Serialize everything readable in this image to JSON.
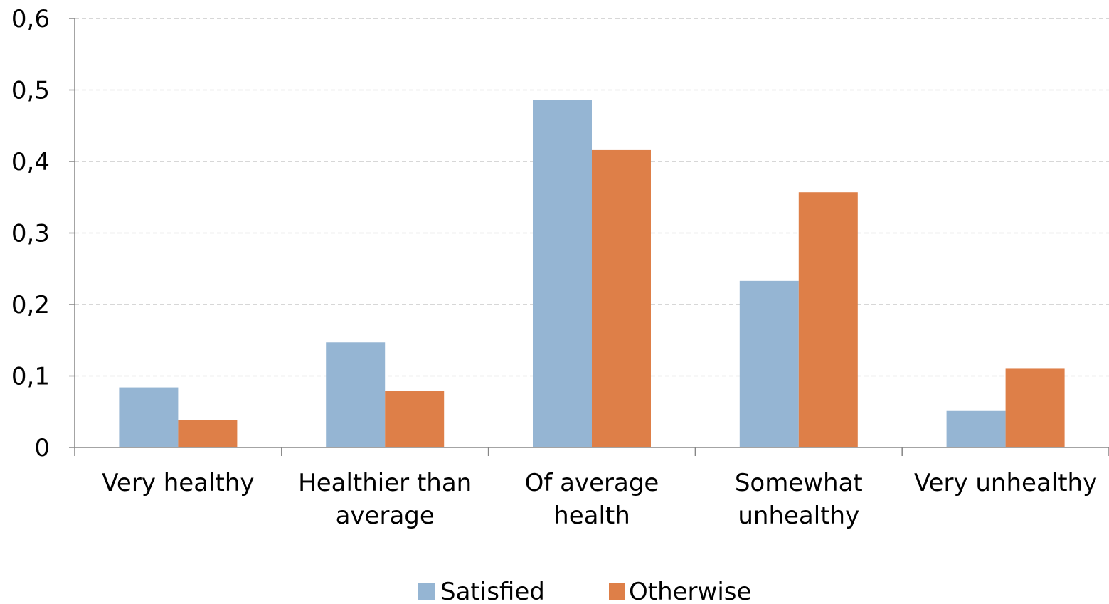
{
  "chart_data": {
    "type": "bar",
    "title": "",
    "xlabel": "",
    "ylabel": "",
    "categories": [
      [
        "Very healthy"
      ],
      [
        "Healthier than",
        "average"
      ],
      [
        "Of average",
        "health"
      ],
      [
        "Somewhat",
        "unhealthy"
      ],
      [
        "Very unhealthy"
      ]
    ],
    "series": [
      {
        "name": "Satisfied",
        "color": "#95B5D3",
        "values": [
          0.084,
          0.147,
          0.486,
          0.233,
          0.051
        ]
      },
      {
        "name": "Otherwise",
        "color": "#DE7F48",
        "values": [
          0.038,
          0.079,
          0.416,
          0.357,
          0.111
        ]
      }
    ],
    "ylim": [
      0,
      0.6
    ],
    "yticks": [
      0,
      0.1,
      0.2,
      0.3,
      0.4,
      0.5,
      0.6
    ],
    "ytick_labels": [
      "0",
      "0,1",
      "0,2",
      "0,3",
      "0,4",
      "0,5",
      "0,6"
    ],
    "grid": true,
    "legend_position": "bottom"
  }
}
